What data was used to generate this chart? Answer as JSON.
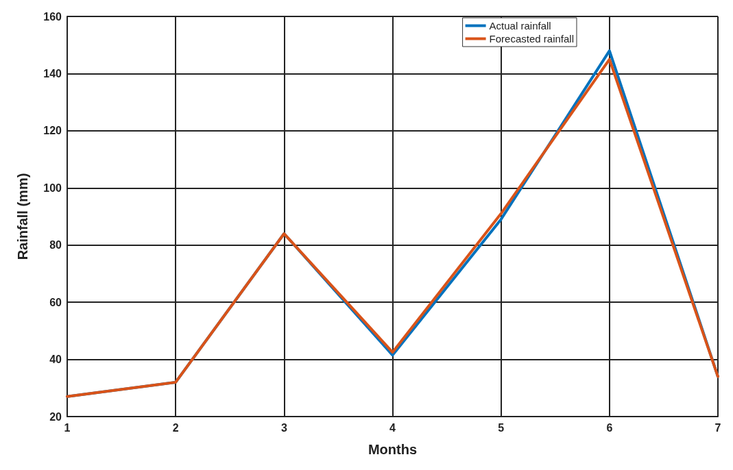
{
  "chart_data": {
    "type": "line",
    "xlabel": "Months",
    "ylabel": "Rainfall (mm)",
    "x": [
      1,
      2,
      3,
      4,
      5,
      6,
      7
    ],
    "series": [
      {
        "name": "Actual rainfall",
        "color": "#0072bd",
        "values": [
          27,
          32,
          84,
          41.5,
          89,
          148,
          34
        ]
      },
      {
        "name": "Forecasted rainfall",
        "color": "#d95319",
        "values": [
          27,
          32,
          84,
          42.5,
          91,
          145,
          34
        ]
      }
    ],
    "xlim": [
      1,
      7
    ],
    "xticks": [
      1,
      2,
      3,
      4,
      5,
      6,
      7
    ],
    "ylim": [
      20,
      160
    ],
    "yticks": [
      20,
      40,
      60,
      80,
      100,
      120,
      140,
      160
    ],
    "grid": true,
    "legend": "top right",
    "marker": "none",
    "line_style": "solid"
  }
}
